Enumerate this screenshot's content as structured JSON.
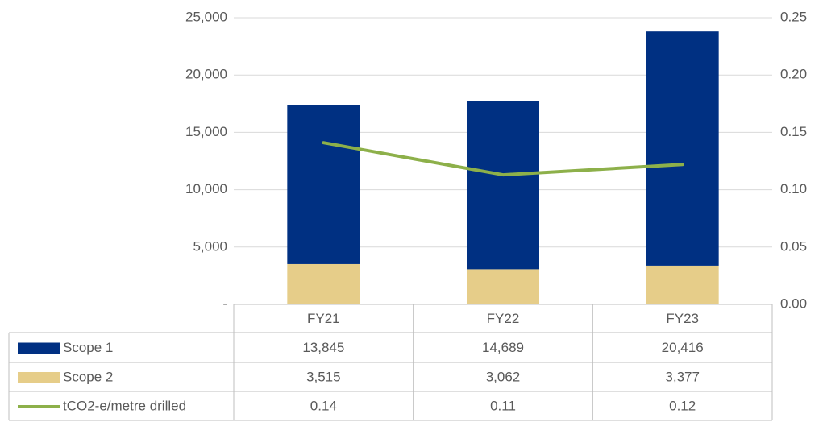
{
  "chart_data": {
    "type": "bar-line",
    "categories": [
      "FY21",
      "FY22",
      "FY23"
    ],
    "series": [
      {
        "name": "Scope 1",
        "color": "#003082",
        "values": [
          13845,
          14689,
          20416
        ],
        "value_labels": [
          "13,845",
          "14,689",
          "20,416"
        ]
      },
      {
        "name": "Scope 2",
        "color": "#e6cd89",
        "values": [
          3515,
          3062,
          3377
        ],
        "value_labels": [
          "3,515",
          "3,062",
          "3,377"
        ]
      },
      {
        "name": "tCO2-e/metre drilled",
        "color": "#8db04a",
        "axis": "y2",
        "values": [
          0.141,
          0.113,
          0.122
        ],
        "value_labels": [
          "0.14",
          "0.11",
          "0.12"
        ]
      }
    ],
    "stacked": true,
    "ylim": [
      0,
      25000
    ],
    "yticks": [
      {
        "value": 0,
        "label": "-"
      },
      {
        "value": 5000,
        "label": "5,000"
      },
      {
        "value": 10000,
        "label": "10,000"
      },
      {
        "value": 15000,
        "label": "15,000"
      },
      {
        "value": 20000,
        "label": "20,000"
      },
      {
        "value": 25000,
        "label": "25,000"
      }
    ],
    "y2lim": [
      0,
      0.25
    ],
    "y2ticks": [
      {
        "value": 0,
        "label": "0.00"
      },
      0.05,
      {
        "value": 0.1,
        "label": "0.10"
      },
      0.15,
      {
        "value": 0.2,
        "label": "0.20"
      },
      0.25
    ],
    "grid": true,
    "legend": "table"
  }
}
